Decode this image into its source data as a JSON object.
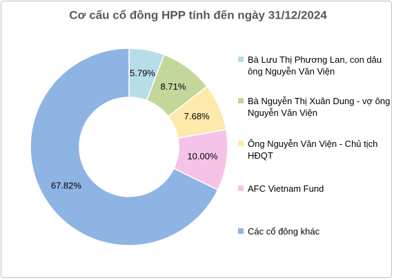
{
  "chart_data": {
    "type": "pie",
    "title": "Cơ cấu cổ đông HPP tính đến ngày 31/12/2024",
    "categories": [
      "Bà Lưu Thị Phương Lan, con dâu ông Nguyễn Văn Viện",
      "Bà Nguyễn Thị Xuân Dung - vợ ông Nguyễn Văn Viện",
      "Ông Nguyễn Văn Viện - Chủ tịch HĐQT",
      "AFC Vietnam Fund",
      "Các cổ đông khác"
    ],
    "values": [
      5.79,
      8.71,
      7.68,
      10.0,
      67.82
    ],
    "value_labels": [
      "5.79%",
      "8.71%",
      "7.68%",
      "10.00%",
      "67.82%"
    ],
    "colors": [
      "#b7dee8",
      "#c4d79b",
      "#fde9a9",
      "#f6c3e8",
      "#8eb4e3"
    ],
    "donut": true,
    "legend": "right"
  }
}
